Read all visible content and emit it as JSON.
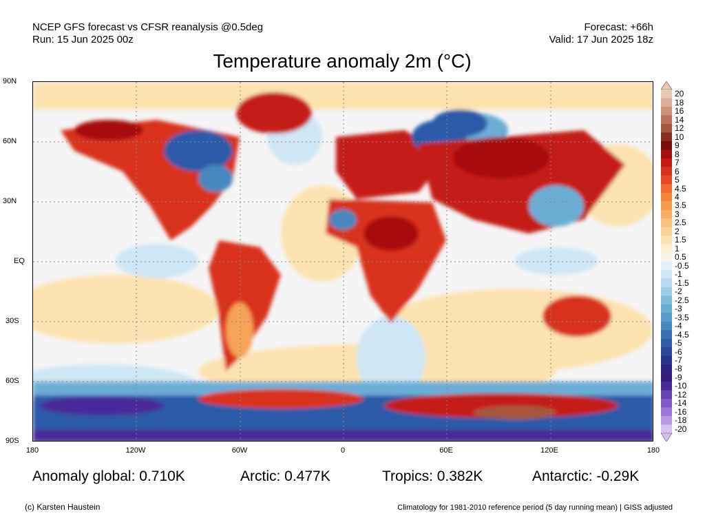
{
  "header": {
    "line1_left": "NCEP GFS forecast vs CFSR reanalysis @0.5deg",
    "line2_left": "Run: 15 Jun 2025 00z",
    "line1_right": "Forecast: +66h",
    "line2_right": "Valid: 17 Jun 2025 18z"
  },
  "title": "Temperature anomaly 2m (°C)",
  "map": {
    "lat_labels": [
      "90N",
      "60N",
      "30N",
      "EQ",
      "30S",
      "60S",
      "90S"
    ],
    "lon_labels": [
      "180",
      "120W",
      "60W",
      "0",
      "60E",
      "120E",
      "180"
    ],
    "colors": {
      "ocean_neutral": "#f4f4f4",
      "warm_light": "#fbe3b0",
      "warm_mid": "#f6a258",
      "hot": "#d9301c",
      "very_hot": "#a8100e",
      "cool_light": "#cfe6f4",
      "cool_mid": "#6aaed6",
      "cold": "#2a5aa8",
      "very_cold": "#4a2a9a"
    }
  },
  "colorbar": {
    "labels": [
      "20",
      "18",
      "16",
      "14",
      "12",
      "10",
      "9",
      "8",
      "7",
      "6",
      "5",
      "4.5",
      "4",
      "3.5",
      "3",
      "2.5",
      "2",
      "1.5",
      "1",
      "0.5",
      "-0.5",
      "-1",
      "-1.5",
      "-2",
      "-2.5",
      "-3",
      "-3.5",
      "-4",
      "-4.5",
      "-5",
      "-6",
      "-7",
      "-8",
      "-9",
      "-10",
      "-12",
      "-14",
      "-16",
      "-18",
      "-20"
    ],
    "colors": [
      "#e9c8b8",
      "#dcae98",
      "#cf937a",
      "#b9725a",
      "#a5583e",
      "#8a2e22",
      "#7a0e0e",
      "#a5110f",
      "#c41a14",
      "#d9301c",
      "#e64a24",
      "#ef6a2e",
      "#f4843a",
      "#f69a4e",
      "#f8ad62",
      "#f9c07c",
      "#fad196",
      "#fbe3b0",
      "#fcefd0",
      "#f7f4ea",
      "#e4f0f7",
      "#cfe6f4",
      "#b8dbee",
      "#9ccbe6",
      "#82bcdd",
      "#6aaed6",
      "#579dcc",
      "#4788bf",
      "#3a72b3",
      "#2f5ea8",
      "#29489b",
      "#28368c",
      "#2a237e",
      "#331c7a",
      "#4a2a9a",
      "#6643b3",
      "#7f5cc6",
      "#9a78d6",
      "#b698e3",
      "#d4c0ee"
    ]
  },
  "stats": {
    "global": "Anomaly global: 0.710K",
    "arctic": "Arctic: 0.477K",
    "tropics": "Tropics: 0.382K",
    "antarctic": "Antarctic: -0.29K"
  },
  "footer": {
    "left": "(c) Karsten Haustein",
    "right": "Climatology for 1981-2010 reference period (5 day running mean) | GISS adjusted"
  }
}
